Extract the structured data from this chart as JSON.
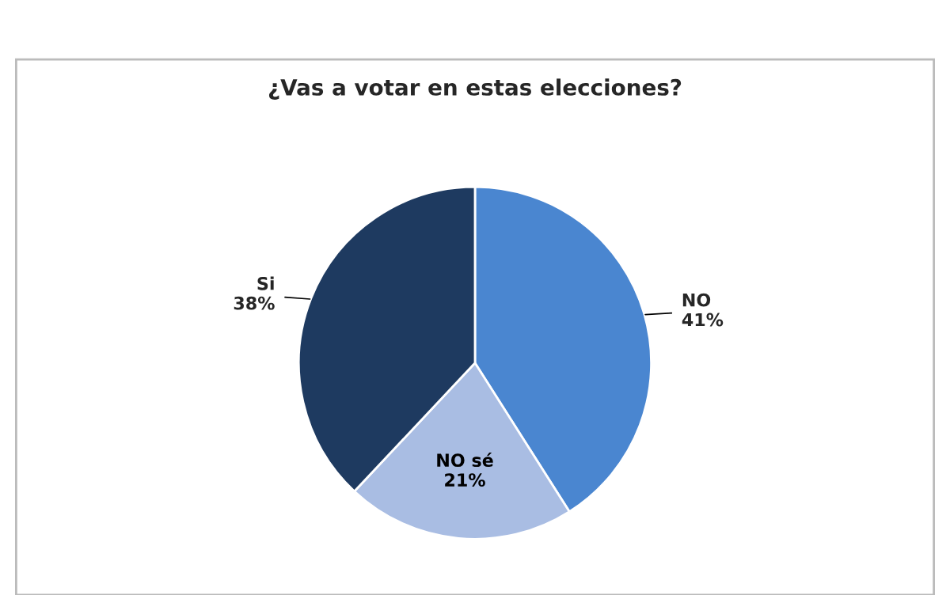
{
  "chart_data": {
    "type": "pie",
    "title": "¿Vas a votar en estas elecciones?",
    "categories": [
      "NO",
      "NO sé",
      "Si"
    ],
    "values": [
      41,
      21,
      38
    ],
    "value_labels": [
      "41%",
      "21%",
      "38%"
    ],
    "colors": [
      "#4a86d0",
      "#a9bde3",
      "#1e3a60"
    ],
    "legend": false
  }
}
